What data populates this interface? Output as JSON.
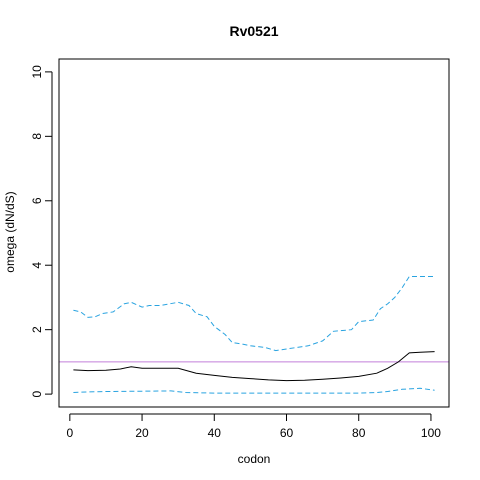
{
  "chart_data": {
    "type": "line",
    "title": "Rv0521",
    "xlabel": "codon",
    "ylabel": "omega (dN/dS)",
    "xlim": [
      1,
      101
    ],
    "ylim": [
      0,
      10
    ],
    "x_ticks": [
      0,
      20,
      40,
      60,
      80,
      100
    ],
    "y_ticks": [
      0,
      2,
      4,
      6,
      8,
      10
    ],
    "grid": false,
    "legend": "none",
    "reference_line": {
      "y": 1,
      "color": "#c27fd9"
    },
    "series": [
      {
        "role": "estimate",
        "color": "#000000",
        "style": "solid",
        "points": [
          [
            1,
            0.75
          ],
          [
            5,
            0.73
          ],
          [
            10,
            0.74
          ],
          [
            14,
            0.78
          ],
          [
            17,
            0.85
          ],
          [
            20,
            0.8
          ],
          [
            25,
            0.8
          ],
          [
            30,
            0.8
          ],
          [
            35,
            0.65
          ],
          [
            40,
            0.58
          ],
          [
            45,
            0.52
          ],
          [
            50,
            0.48
          ],
          [
            55,
            0.44
          ],
          [
            60,
            0.42
          ],
          [
            65,
            0.43
          ],
          [
            70,
            0.46
          ],
          [
            75,
            0.5
          ],
          [
            80,
            0.55
          ],
          [
            85,
            0.65
          ],
          [
            88,
            0.8
          ],
          [
            91,
            1.0
          ],
          [
            94,
            1.28
          ],
          [
            97,
            1.3
          ],
          [
            101,
            1.32
          ]
        ]
      },
      {
        "role": "upper-bound",
        "color": "#29a3e0",
        "style": "dashed",
        "points": [
          [
            1,
            2.6
          ],
          [
            3,
            2.55
          ],
          [
            5,
            2.38
          ],
          [
            7,
            2.4
          ],
          [
            9,
            2.5
          ],
          [
            12,
            2.55
          ],
          [
            15,
            2.8
          ],
          [
            17,
            2.85
          ],
          [
            20,
            2.7
          ],
          [
            22,
            2.75
          ],
          [
            25,
            2.75
          ],
          [
            30,
            2.85
          ],
          [
            33,
            2.75
          ],
          [
            35,
            2.5
          ],
          [
            38,
            2.4
          ],
          [
            40,
            2.1
          ],
          [
            43,
            1.85
          ],
          [
            45,
            1.6
          ],
          [
            48,
            1.55
          ],
          [
            50,
            1.5
          ],
          [
            54,
            1.45
          ],
          [
            57,
            1.35
          ],
          [
            60,
            1.4
          ],
          [
            63,
            1.45
          ],
          [
            66,
            1.5
          ],
          [
            70,
            1.65
          ],
          [
            73,
            1.95
          ],
          [
            78,
            2.0
          ],
          [
            80,
            2.25
          ],
          [
            84,
            2.3
          ],
          [
            86,
            2.65
          ],
          [
            88,
            2.8
          ],
          [
            90,
            3.0
          ],
          [
            92,
            3.3
          ],
          [
            94,
            3.65
          ],
          [
            101,
            3.65
          ]
        ]
      },
      {
        "role": "lower-bound",
        "color": "#29a3e0",
        "style": "dashed",
        "points": [
          [
            1,
            0.05
          ],
          [
            5,
            0.07
          ],
          [
            10,
            0.08
          ],
          [
            20,
            0.09
          ],
          [
            28,
            0.1
          ],
          [
            32,
            0.05
          ],
          [
            40,
            0.03
          ],
          [
            60,
            0.03
          ],
          [
            80,
            0.03
          ],
          [
            85,
            0.05
          ],
          [
            88,
            0.08
          ],
          [
            92,
            0.15
          ],
          [
            97,
            0.18
          ],
          [
            101,
            0.12
          ]
        ]
      }
    ]
  }
}
